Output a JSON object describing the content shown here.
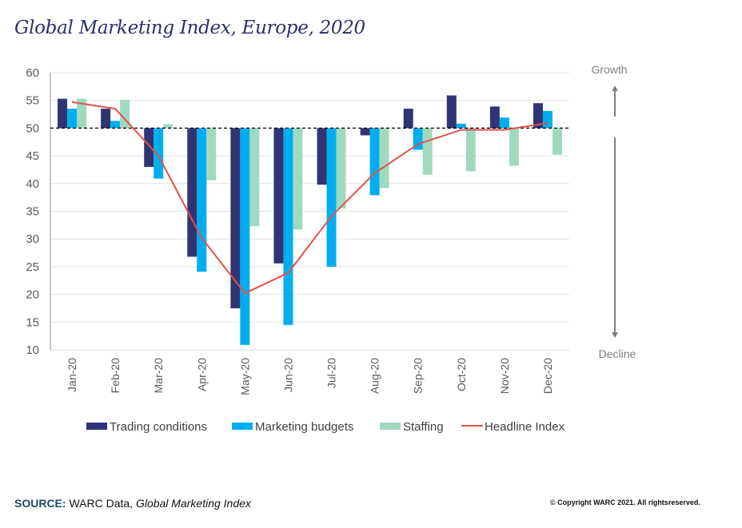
{
  "title": "Global Marketing Index, Europe, 2020",
  "source": {
    "label": "SOURCE:",
    "text": "WARC Data, ",
    "italic": "Global Marketing Index"
  },
  "copyright": "© Copyright WARC 2021. All rightsreserved.",
  "side_labels": {
    "top": "Growth",
    "bottom": "Decline"
  },
  "colors": {
    "Trading conditions": "#313474",
    "Marketing budgets": "#00aeef",
    "Staffing": "#a1d9bf",
    "Headline Index": "#e0524c"
  },
  "chart_data": {
    "type": "bar",
    "title": "Global Marketing Index, Europe, 2020",
    "xlabel": "",
    "ylabel": "",
    "ylim": [
      10,
      60
    ],
    "yticks": [
      10,
      15,
      20,
      25,
      30,
      35,
      40,
      45,
      50,
      55,
      60
    ],
    "baseline": 50,
    "grid": true,
    "legend_position": "bottom",
    "categories": [
      "Jan-20",
      "Feb-20",
      "Mar-20",
      "Apr-20",
      "May-20",
      "Jun-20",
      "Jul-20",
      "Aug-20",
      "Sep-20",
      "Oct-20",
      "Nov-20",
      "Dec-20"
    ],
    "series": [
      {
        "name": "Trading conditions",
        "type": "bar",
        "values": [
          55.3,
          53.5,
          43.0,
          26.8,
          17.5,
          25.6,
          39.8,
          48.7,
          53.5,
          55.9,
          53.9,
          54.5
        ]
      },
      {
        "name": "Marketing budgets",
        "type": "bar",
        "values": [
          53.5,
          51.3,
          40.9,
          24.1,
          10.9,
          14.5,
          25.0,
          37.9,
          46.1,
          50.8,
          51.9,
          53.1
        ]
      },
      {
        "name": "Staffing",
        "type": "bar",
        "values": [
          55.3,
          55.1,
          50.7,
          40.6,
          32.3,
          31.7,
          35.5,
          39.2,
          41.6,
          42.2,
          43.2,
          45.2
        ]
      },
      {
        "name": "Headline Index",
        "type": "line",
        "values": [
          54.7,
          53.5,
          45.0,
          30.2,
          20.2,
          23.9,
          34.1,
          41.9,
          47.1,
          49.7,
          49.7,
          50.9
        ]
      }
    ]
  }
}
